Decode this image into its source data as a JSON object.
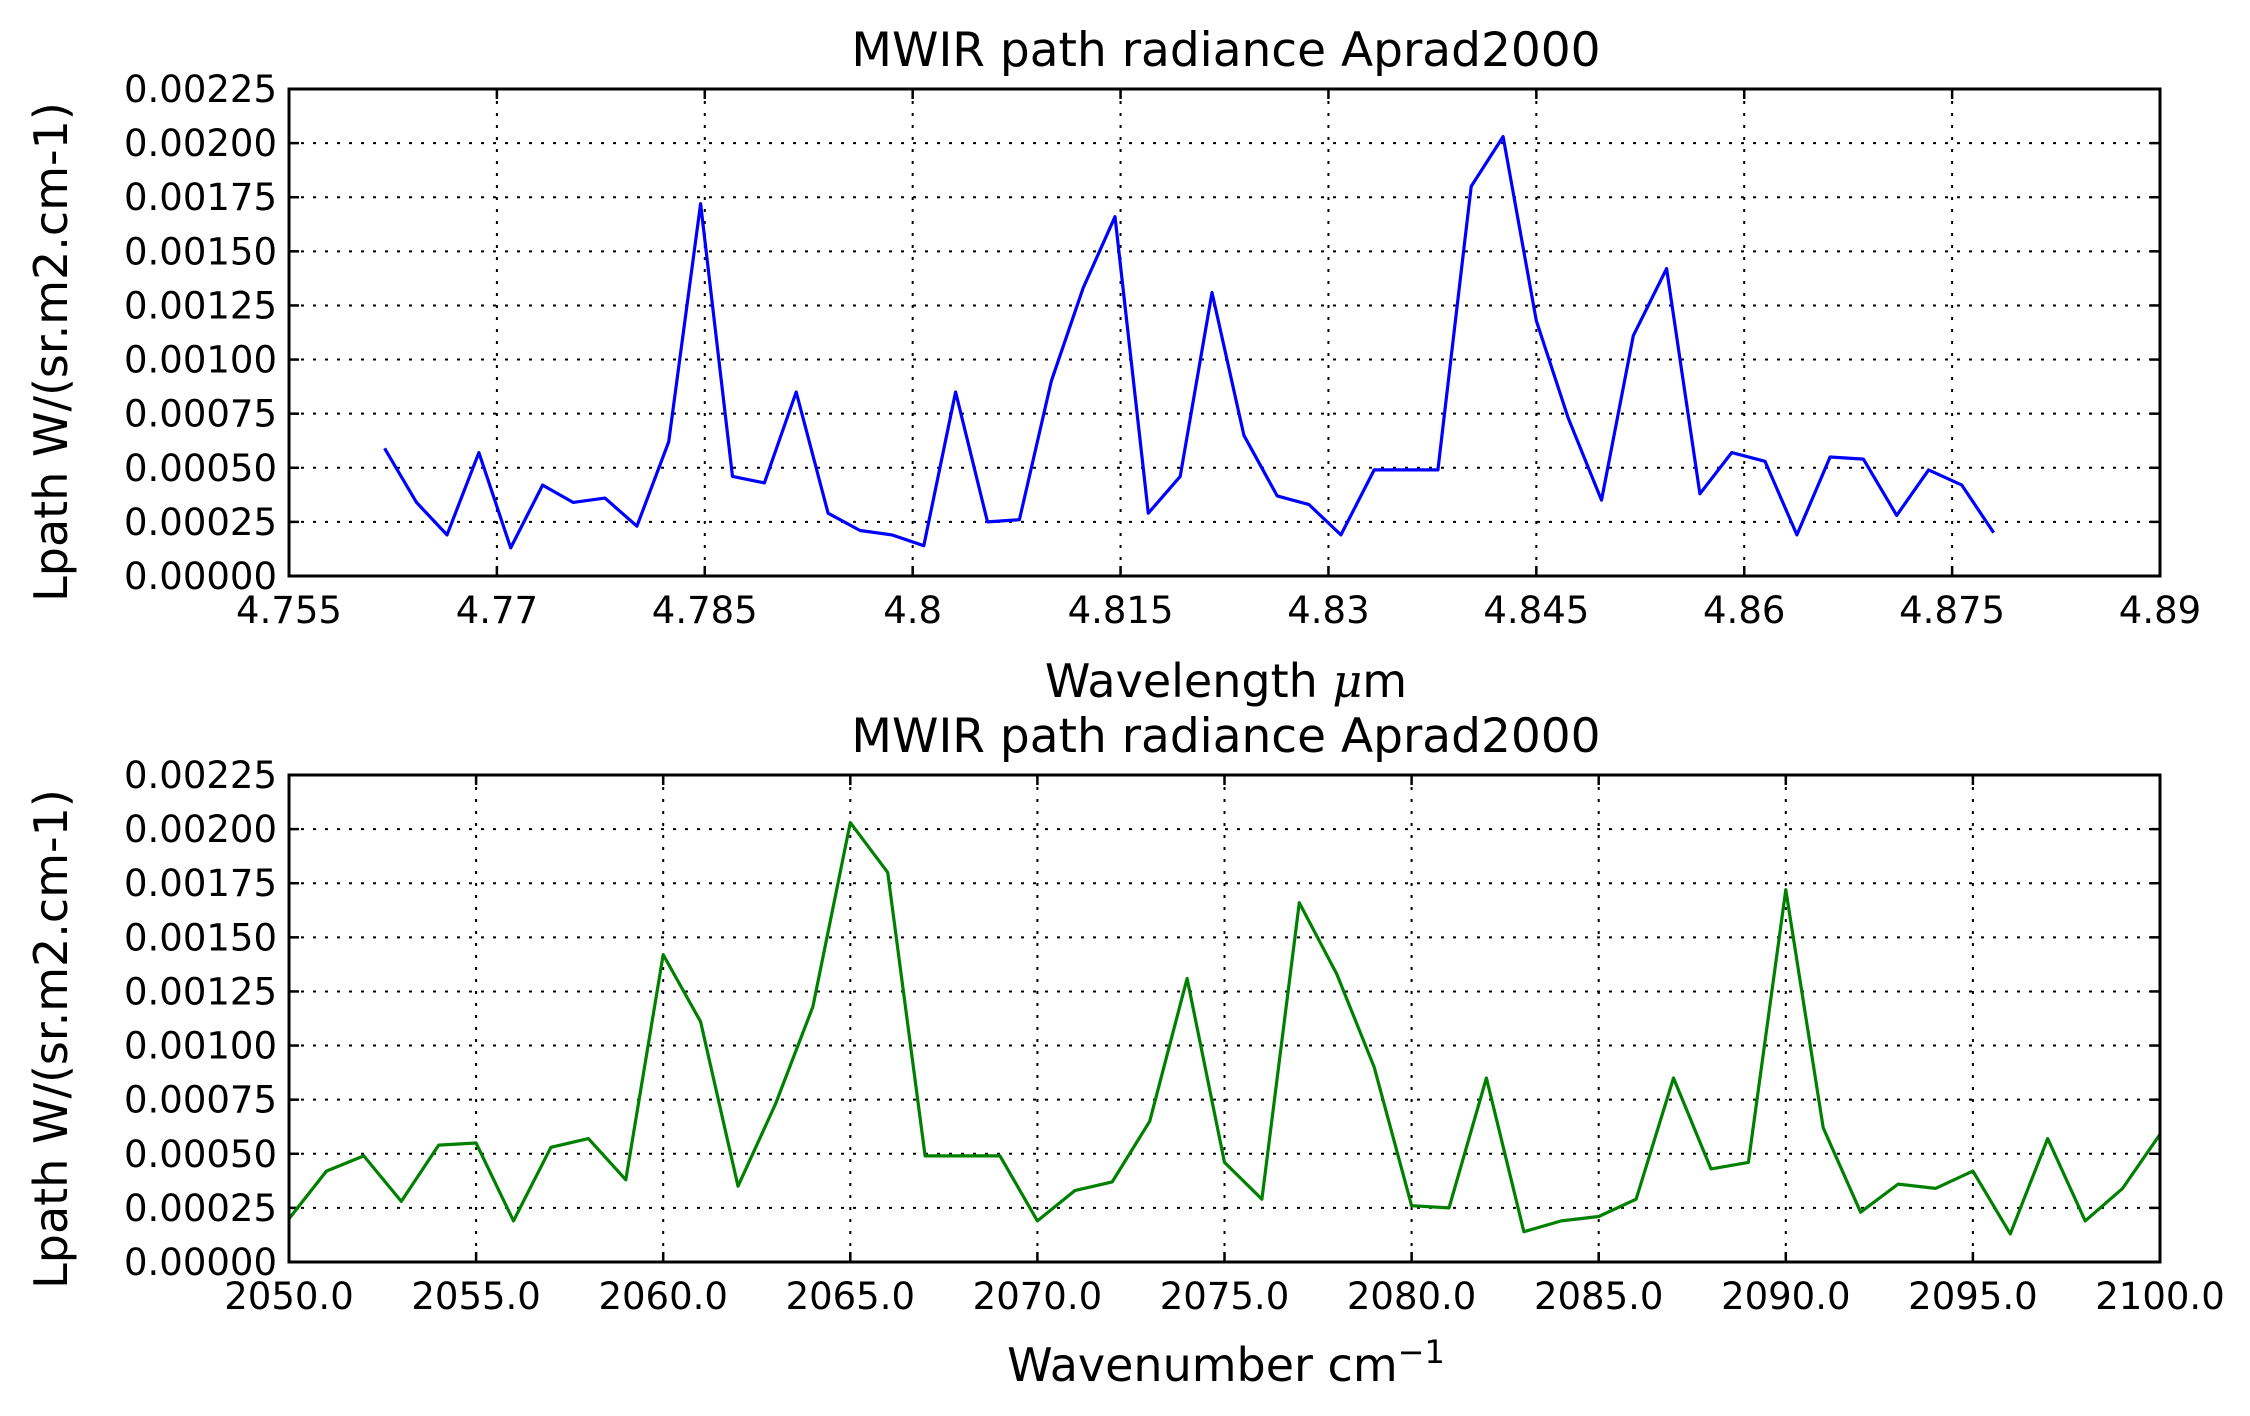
{
  "chart_data": [
    {
      "type": "line",
      "title": "MWIR path radiance Aprad2000",
      "xlabel_text": "Wavelength ",
      "xlabel_symbol": "μ",
      "xlabel_unit": "m",
      "ylabel": "Lpath W/(sr.m2.cm-1)",
      "xlim": [
        4.755,
        4.89
      ],
      "ylim": [
        0.0,
        0.00225
      ],
      "xticks": [
        "4.755",
        "4.77",
        "4.785",
        "4.8",
        "4.815",
        "4.83",
        "4.845",
        "4.86",
        "4.875",
        "4.89"
      ],
      "yticks": [
        "0.00000",
        "0.00025",
        "0.00050",
        "0.00075",
        "0.00100",
        "0.00125",
        "0.00150",
        "0.00175",
        "0.00200",
        "0.00225"
      ],
      "grid": true,
      "color": "#0000ff",
      "series": [
        {
          "x": [
            4.7619,
            4.7642,
            4.7664,
            4.7687,
            4.771,
            4.7733,
            4.7755,
            4.7778,
            4.7801,
            4.7824,
            4.7847,
            4.787,
            4.7893,
            4.7916,
            4.7939,
            4.7962,
            4.7985,
            4.8008,
            4.8031,
            4.8054,
            4.8077,
            4.81,
            4.8123,
            4.8146,
            4.817,
            4.8193,
            4.8216,
            4.8239,
            4.8263,
            4.8286,
            4.8309,
            4.8333,
            4.8356,
            4.8379,
            4.8403,
            4.8426,
            4.845,
            4.8473,
            4.8497,
            4.852,
            4.8544,
            4.8568,
            4.8591,
            4.8615,
            4.8638,
            4.8662,
            4.8686,
            4.871,
            4.8733,
            4.8757,
            4.878
          ],
          "y": [
            0.00059,
            0.00034,
            0.00019,
            0.00057,
            0.00013,
            0.00042,
            0.00034,
            0.00036,
            0.00023,
            0.00062,
            0.00172,
            0.00046,
            0.00043,
            0.00085,
            0.00029,
            0.00021,
            0.00019,
            0.00014,
            0.00085,
            0.00025,
            0.00026,
            0.0009,
            0.00133,
            0.00166,
            0.00029,
            0.00046,
            0.00131,
            0.00065,
            0.00037,
            0.00033,
            0.00019,
            0.00049,
            0.00049,
            0.00049,
            0.0018,
            0.00203,
            0.00118,
            0.00073,
            0.00035,
            0.00111,
            0.00142,
            0.00038,
            0.00057,
            0.00053,
            0.00019,
            0.00055,
            0.00054,
            0.00028,
            0.00049,
            0.00042,
            0.0002
          ]
        }
      ]
    },
    {
      "type": "line",
      "title": "MWIR path radiance Aprad2000",
      "xlabel_text": "Wavenumber cm",
      "xlabel_sup": "−1",
      "ylabel": "Lpath W/(sr.m2.cm-1)",
      "xlim": [
        2050.0,
        2100.0
      ],
      "ylim": [
        0.0,
        0.00225
      ],
      "xticks": [
        "2050.0",
        "2055.0",
        "2060.0",
        "2065.0",
        "2070.0",
        "2075.0",
        "2080.0",
        "2085.0",
        "2090.0",
        "2095.0",
        "2100.0"
      ],
      "yticks": [
        "0.00000",
        "0.00025",
        "0.00050",
        "0.00075",
        "0.00100",
        "0.00125",
        "0.00150",
        "0.00175",
        "0.00200",
        "0.00225"
      ],
      "grid": true,
      "color": "#008000",
      "series": [
        {
          "x": [
            2050,
            2051,
            2052,
            2053,
            2054,
            2055,
            2056,
            2057,
            2058,
            2059,
            2060,
            2061,
            2062,
            2063,
            2064,
            2065,
            2066,
            2067,
            2068,
            2069,
            2070,
            2071,
            2072,
            2073,
            2074,
            2075,
            2076,
            2077,
            2078,
            2079,
            2080,
            2081,
            2082,
            2083,
            2084,
            2085,
            2086,
            2087,
            2088,
            2089,
            2090,
            2091,
            2092,
            2093,
            2094,
            2095,
            2096,
            2097,
            2098,
            2099,
            2100
          ],
          "y": [
            0.0002,
            0.00042,
            0.00049,
            0.00028,
            0.00054,
            0.00055,
            0.00019,
            0.00053,
            0.00057,
            0.00038,
            0.00142,
            0.00111,
            0.00035,
            0.00073,
            0.00118,
            0.00203,
            0.0018,
            0.00049,
            0.00049,
            0.00049,
            0.00019,
            0.00033,
            0.00037,
            0.00065,
            0.00131,
            0.00046,
            0.00029,
            0.00166,
            0.00133,
            0.0009,
            0.00026,
            0.00025,
            0.00085,
            0.00014,
            0.00019,
            0.00021,
            0.00029,
            0.00085,
            0.00043,
            0.00046,
            0.00172,
            0.00062,
            0.00023,
            0.00036,
            0.00034,
            0.00042,
            0.00013,
            0.00057,
            0.00019,
            0.00034,
            0.00059
          ]
        }
      ]
    }
  ]
}
